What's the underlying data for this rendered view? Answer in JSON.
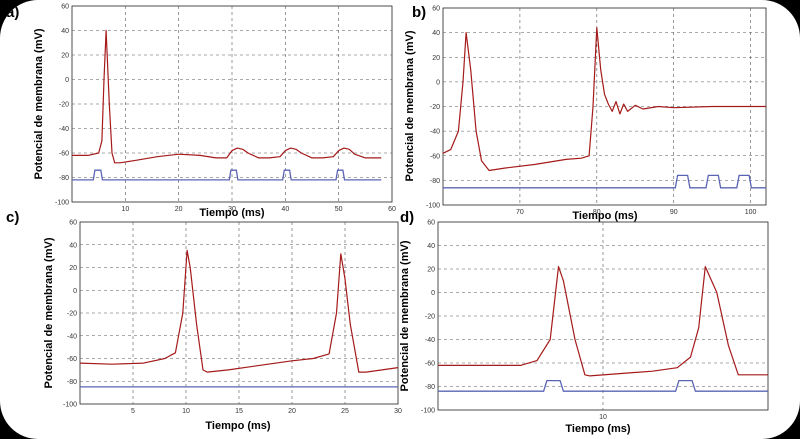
{
  "chart_data": [
    {
      "id": "a",
      "type": "line",
      "panel_label": "a)",
      "xlabel": "Tiempo (ms)",
      "ylabel": "Potencial de membrana (mV)",
      "xlim": [
        0,
        60
      ],
      "ylim": [
        -100,
        60
      ],
      "xticks": [
        10,
        20,
        30,
        40,
        50,
        60
      ],
      "yticks": [
        -100,
        -80,
        -60,
        -40,
        -20,
        0,
        20,
        40,
        60
      ],
      "tick_labels_y": [
        "-100",
        "-80",
        "-60",
        "-40",
        "-20",
        "0",
        "20",
        "40",
        "60"
      ],
      "tick_labels_x": [
        "10",
        "20",
        "30",
        "40",
        "50",
        "60"
      ],
      "series": [
        {
          "name": "membrane_potential",
          "color": "#a51a1a",
          "x": [
            0,
            3,
            5,
            5.6,
            6,
            6.4,
            7,
            7.5,
            8,
            9,
            12,
            16,
            20,
            24,
            27,
            29,
            30,
            31,
            32,
            33,
            35,
            37,
            39,
            40,
            41,
            42,
            43,
            45,
            47,
            49,
            50,
            51,
            52,
            53,
            55,
            58
          ],
          "y": [
            -62,
            -62,
            -60,
            -50,
            0,
            40,
            -20,
            -60,
            -68,
            -68,
            -66,
            -63,
            -61,
            -62,
            -64,
            -64,
            -58,
            -56,
            -57,
            -60,
            -64,
            -64,
            -63,
            -58,
            -56,
            -57,
            -60,
            -64,
            -64,
            -63,
            -58,
            -56,
            -57,
            -61,
            -64,
            -64
          ]
        },
        {
          "name": "stimulus",
          "color": "#5b64b4",
          "x": [
            0,
            4,
            4.3,
            5.4,
            5.7,
            29.5,
            29.8,
            30.8,
            31.1,
            39.5,
            39.8,
            40.8,
            41.1,
            49.5,
            49.8,
            50.8,
            51.1,
            58
          ],
          "y": [
            -82,
            -82,
            -74,
            -74,
            -82,
            -82,
            -74,
            -74,
            -82,
            -82,
            -74,
            -74,
            -82,
            -82,
            -74,
            -74,
            -82,
            -82
          ]
        }
      ]
    },
    {
      "id": "b",
      "type": "line",
      "panel_label": "b)",
      "xlabel": "Tiempo (ms)",
      "ylabel": "Potencial de membrana (mV)",
      "xlim": [
        60,
        102
      ],
      "ylim": [
        -100,
        60
      ],
      "xticks": [
        70,
        80,
        90,
        100
      ],
      "yticks": [
        -100,
        -80,
        -60,
        -40,
        -20,
        0,
        20,
        40,
        60
      ],
      "tick_labels_y": [
        "-100",
        "-80",
        "-60",
        "-40",
        "-20",
        "0",
        "20",
        "40",
        "60"
      ],
      "tick_labels_x": [
        "70",
        "80",
        "90",
        "100"
      ],
      "series": [
        {
          "name": "membrane_potential",
          "color": "#a51a1a",
          "x": [
            60,
            61,
            62,
            62.6,
            63,
            63.6,
            64.3,
            65,
            66,
            68,
            72,
            76,
            78,
            79,
            79.5,
            80,
            80.5,
            81,
            81.5,
            82,
            82.5,
            83,
            83.5,
            84,
            85,
            86,
            88,
            90,
            95,
            100,
            102
          ],
          "y": [
            -58,
            -55,
            -40,
            0,
            40,
            10,
            -40,
            -64,
            -72,
            -70,
            -67,
            -63,
            -62,
            -60,
            -20,
            44,
            10,
            -10,
            -18,
            -24,
            -16,
            -26,
            -18,
            -24,
            -19,
            -22,
            -20,
            -21,
            -20,
            -20,
            -20
          ]
        },
        {
          "name": "stimulus",
          "color": "#5b64b4",
          "x": [
            60,
            90.2,
            90.5,
            91.8,
            92.1,
            94.2,
            94.5,
            95.8,
            96.1,
            98.2,
            98.5,
            99.8,
            100.1,
            102
          ],
          "y": [
            -86,
            -86,
            -76,
            -76,
            -86,
            -86,
            -76,
            -76,
            -86,
            -86,
            -76,
            -76,
            -86,
            -86
          ]
        }
      ]
    },
    {
      "id": "c",
      "type": "line",
      "panel_label": "c)",
      "xlabel": "Tiempo (ms)",
      "ylabel": "Potencial de membrana (mV)",
      "xlim": [
        0,
        30
      ],
      "ylim": [
        -100,
        60
      ],
      "xticks": [
        5,
        10,
        15,
        20,
        25,
        30
      ],
      "yticks": [
        -100,
        -80,
        -60,
        -40,
        -20,
        0,
        20,
        40,
        60
      ],
      "tick_labels_y": [
        "-100",
        "-80",
        "-60",
        "-40",
        "-20",
        "0",
        "20",
        "40",
        "60"
      ],
      "tick_labels_x": [
        "5",
        "10",
        "15",
        "20",
        "25",
        "30"
      ],
      "series": [
        {
          "name": "membrane_potential",
          "color": "#a51a1a",
          "x": [
            0,
            3,
            6,
            8,
            9,
            9.7,
            10.1,
            10.4,
            11,
            11.6,
            12,
            14,
            17,
            20,
            22,
            23.5,
            24.2,
            24.6,
            25,
            25.5,
            26.3,
            27,
            28.5,
            30
          ],
          "y": [
            -64,
            -65,
            -64,
            -60,
            -55,
            -20,
            35,
            20,
            -30,
            -70,
            -72,
            -70,
            -66,
            -62,
            -60,
            -56,
            -20,
            32,
            10,
            -30,
            -72,
            -72,
            -70,
            -68
          ]
        },
        {
          "name": "stimulus",
          "color": "#5b64b4",
          "x": [
            0,
            30
          ],
          "y": [
            -85,
            -85
          ]
        }
      ]
    },
    {
      "id": "d",
      "type": "line",
      "panel_label": "d)",
      "xlabel": "Tiempo (ms)",
      "ylabel": "Potencial de membrana (mV)",
      "xlim": [
        0,
        20
      ],
      "ylim": [
        -100,
        60
      ],
      "xticks": [
        10
      ],
      "yticks": [
        -100,
        -80,
        -60,
        -40,
        -20,
        0,
        20,
        40,
        60
      ],
      "tick_labels_y": [
        "-100",
        "-80",
        "-60",
        "-40",
        "-20",
        "0",
        "20",
        "40",
        "60"
      ],
      "tick_labels_x": [
        "10"
      ],
      "series": [
        {
          "name": "membrane_potential",
          "color": "#a51a1a",
          "x": [
            0,
            3,
            5,
            6,
            6.8,
            7.3,
            7.6,
            8.3,
            8.9,
            9.2,
            11,
            13,
            14.5,
            15.3,
            15.8,
            16.2,
            16.9,
            17.6,
            18.2,
            20
          ],
          "y": [
            -62,
            -62,
            -62,
            -58,
            -40,
            22,
            10,
            -40,
            -70,
            -71,
            -69,
            -67,
            -64,
            -55,
            -30,
            22,
            0,
            -45,
            -70,
            -70
          ]
        },
        {
          "name": "stimulus",
          "color": "#5b64b4",
          "x": [
            0,
            6.4,
            6.6,
            7.4,
            7.6,
            14.4,
            14.6,
            15.4,
            15.6,
            20
          ],
          "y": [
            -84,
            -84,
            -75,
            -75,
            -84,
            -84,
            -75,
            -75,
            -84,
            -84
          ]
        }
      ]
    }
  ]
}
